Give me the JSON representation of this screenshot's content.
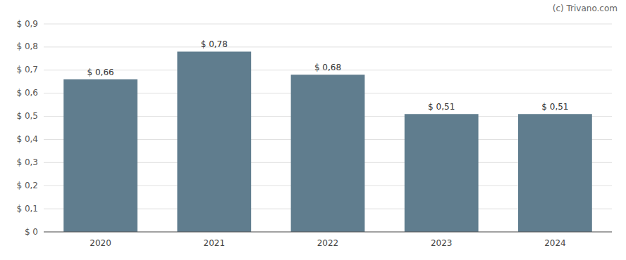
{
  "chart_data": {
    "type": "bar",
    "categories": [
      "2020",
      "2021",
      "2022",
      "2023",
      "2024"
    ],
    "values": [
      0.66,
      0.78,
      0.68,
      0.51,
      0.51
    ],
    "value_labels": [
      "$ 0,66",
      "$ 0,78",
      "$ 0,68",
      "$ 0,51",
      "$ 0,51"
    ],
    "data_labels": true,
    "color": "#607d8e",
    "ylim": [
      0,
      0.9
    ],
    "yticks": [
      {
        "value": 0.0,
        "label": "$ 0"
      },
      {
        "value": 0.1,
        "label": "$ 0,1"
      },
      {
        "value": 0.2,
        "label": "$ 0,2"
      },
      {
        "value": 0.3,
        "label": "$ 0,3"
      },
      {
        "value": 0.4,
        "label": "$ 0,4"
      },
      {
        "value": 0.5,
        "label": "$ 0,5"
      },
      {
        "value": 0.6,
        "label": "$ 0,6"
      },
      {
        "value": 0.7,
        "label": "$ 0,7"
      },
      {
        "value": 0.8,
        "label": "$ 0,8"
      },
      {
        "value": 0.9,
        "label": "$ 0,9"
      }
    ],
    "grid": true,
    "annotations": [
      "(c) Trivano.com"
    ]
  }
}
